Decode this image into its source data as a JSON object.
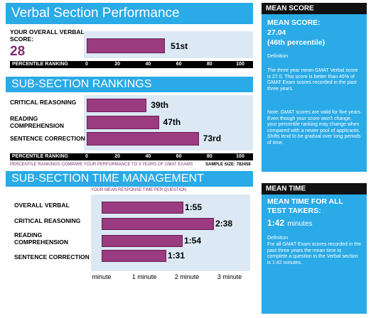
{
  "colors": {
    "header_blue": "#2aaae6",
    "bar_purple": "#9b3b80",
    "plot_bg": "#dce9f5",
    "axis_black": "#000000"
  },
  "verbal": {
    "title": "Verbal Section Performance",
    "score_label_line1": "YOUR OVERALL VERBAL",
    "score_label_line2": "SCORE:",
    "score": "28",
    "axis_label": "PERCENTILE RANKING"
  },
  "subsection": {
    "title": "SUB-SECTION RANKINGS",
    "rows": [
      {
        "label_line1": "CRITICAL REASONING",
        "label_line2": ""
      },
      {
        "label_line1": "READING",
        "label_line2": "COMPREHENSION"
      },
      {
        "label_line1": "SENTENCE CORRECTION",
        "label_line2": ""
      }
    ],
    "axis_label": "PERCENTILE RANKING",
    "note": "PERCENTILE RANKINGS COMPARE YOUR PERFORMANCE TO 3 YEARS OF GMAT EXAMS",
    "sample_size": "SAMPLE SIZE: 782458"
  },
  "time": {
    "title": "SUB-SECTION TIME MANAGEMENT",
    "subtitle": "YOUR MEAN RESPONSE TIME PER QUESTION",
    "rows": [
      {
        "label_line1": "OVERALL VERBAL",
        "label_line2": ""
      },
      {
        "label_line1": "CRITICAL REASONING",
        "label_line2": ""
      },
      {
        "label_line1": "READING",
        "label_line2": "COMPREHENSION"
      },
      {
        "label_line1": "SENTENCE CORRECTION",
        "label_line2": ""
      }
    ]
  },
  "mean_score_panel": {
    "header": "MEAN SCORE",
    "label": "MEAN SCORE:",
    "value": "27.04",
    "percentile": "(46th percentile)",
    "definition_title": "Definition",
    "definition": "The three year mean GMAT Verbal score is 27.0. This score is better than 46% of GMAT Exam scores recorded in the past three years.",
    "note": "Note: GMAT scores are valid for five years. Even though your score won't change, your percentile ranking may change when compared with a newer pool of applicants. Shifts tend to be gradual over long periods of time."
  },
  "mean_time_panel": {
    "header": "MEAN TIME",
    "label_line1": "MEAN TIME FOR ALL",
    "label_line2": "TEST TAKERS:",
    "value": "1:42",
    "unit": "minutes",
    "definition_title": "Definition",
    "definition": "For all GMAT Exam scores recorded in the past three years the mean time to complete a question in the Verbal section is 1:42 minutes."
  },
  "chart_data": [
    {
      "type": "bar",
      "orientation": "horizontal",
      "title": "Verbal Section Performance",
      "xlabel": "PERCENTILE RANKING",
      "xlim": [
        0,
        100
      ],
      "xticks": [
        "0",
        "20",
        "40",
        "60",
        "80",
        "100"
      ],
      "categories": [
        "YOUR OVERALL VERBAL SCORE: 28"
      ],
      "values": [
        51
      ],
      "data_labels": [
        "51st"
      ]
    },
    {
      "type": "bar",
      "orientation": "horizontal",
      "title": "SUB-SECTION RANKINGS",
      "xlabel": "PERCENTILE RANKING",
      "xlim": [
        0,
        100
      ],
      "xticks": [
        "0",
        "20",
        "40",
        "60",
        "80",
        "100"
      ],
      "categories": [
        "CRITICAL REASONING",
        "READING COMPREHENSION",
        "SENTENCE CORRECTION"
      ],
      "values": [
        39,
        47,
        73
      ],
      "data_labels": [
        "39th",
        "47th",
        "73rd"
      ]
    },
    {
      "type": "bar",
      "orientation": "horizontal",
      "title": "SUB-SECTION TIME MANAGEMENT",
      "subtitle": "YOUR MEAN RESPONSE TIME PER QUESTION",
      "xlim": [
        0,
        3
      ],
      "xtick_values": [
        0,
        1,
        2,
        3
      ],
      "xticks": [
        "minute",
        "1 minute",
        "2 minute",
        "3 minute"
      ],
      "categories": [
        "OVERALL VERBAL",
        "CRITICAL REASONING",
        "READING COMPREHENSION",
        "SENTENCE CORRECTION"
      ],
      "values": [
        1.917,
        2.633,
        1.9,
        1.517
      ],
      "data_labels": [
        "1:55",
        "2:38",
        "1:54",
        "1:31"
      ]
    }
  ]
}
